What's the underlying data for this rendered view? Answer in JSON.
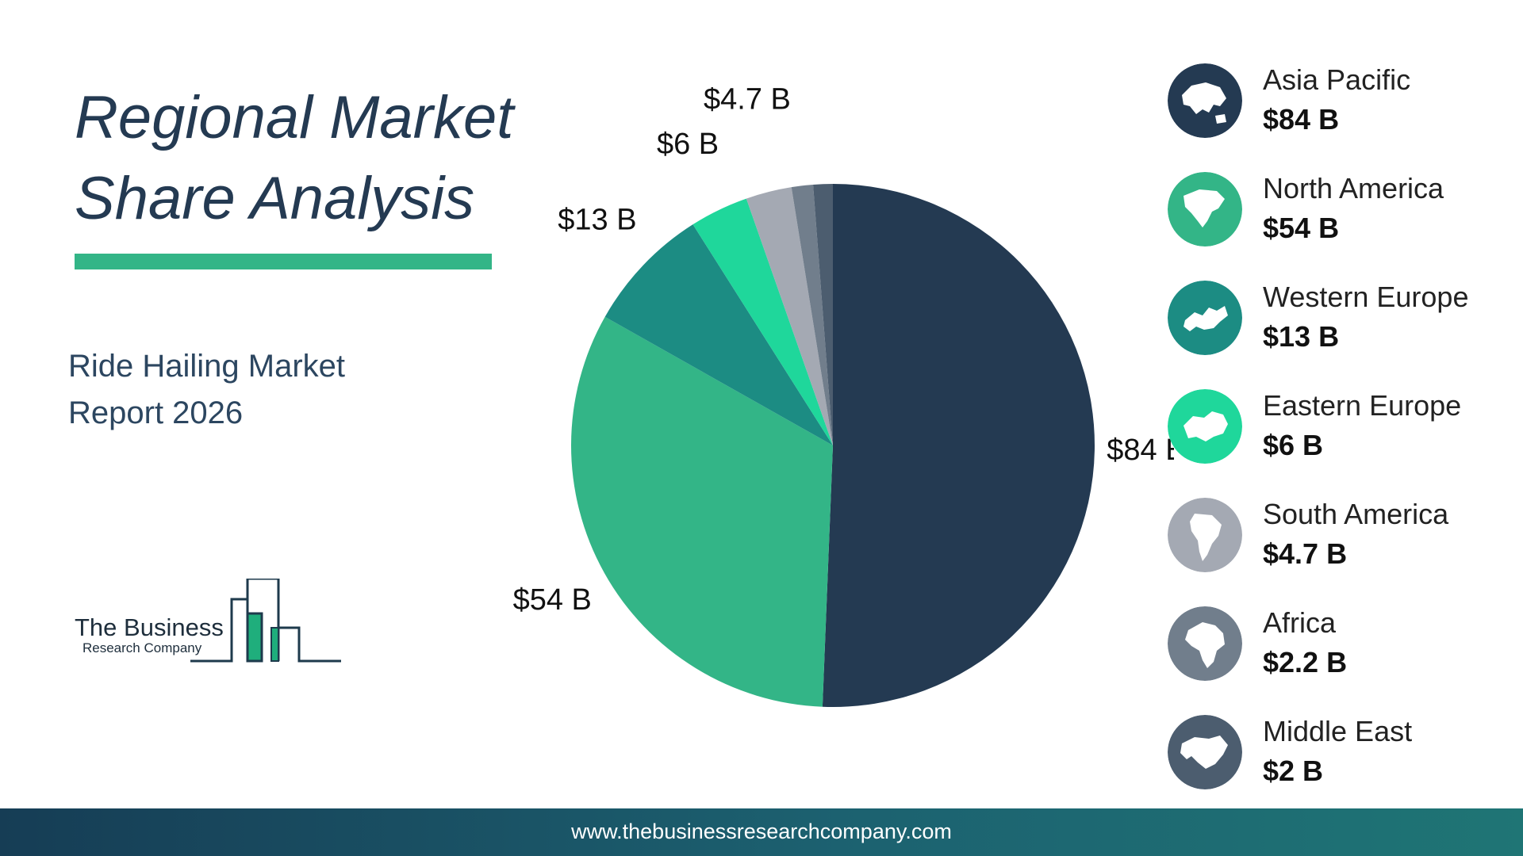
{
  "header": {
    "title_line1": "Regional Market",
    "title_line2": "Share Analysis",
    "subtitle_line1": "Ride Hailing Market",
    "subtitle_line2": "Report 2026"
  },
  "logo": {
    "name": "The Business",
    "sub": "Research Company"
  },
  "footer": {
    "url": "www.thebusinessresearchcompany.com"
  },
  "colors": {
    "title_accent": "#33b587",
    "footer_start": "#163d55",
    "footer_end": "#1f7575"
  },
  "chart_data": {
    "type": "pie",
    "start_angle_deg": 0,
    "direction": "clockwise",
    "slices": [
      {
        "label": "Asia Pacific",
        "value": 84,
        "display": "$84 B",
        "color": "#243a52",
        "icon": "asia-pacific-map-icon"
      },
      {
        "label": "North America",
        "value": 54,
        "display": "$54 B",
        "color": "#33b587",
        "icon": "north-america-map-icon"
      },
      {
        "label": "Western Europe",
        "value": 13,
        "display": "$13 B",
        "color": "#1c8c83",
        "icon": "western-europe-map-icon"
      },
      {
        "label": "Eastern Europe",
        "value": 6,
        "display": "$6 B",
        "color": "#1fd79b",
        "icon": "eastern-europe-map-icon"
      },
      {
        "label": "South America",
        "value": 4.7,
        "display": "$4.7 B",
        "color": "#a4a9b3",
        "icon": "south-america-map-icon"
      },
      {
        "label": "Africa",
        "value": 2.2,
        "display": "$2.2 B",
        "color": "#717e8c",
        "icon": "africa-map-icon"
      },
      {
        "label": "Middle East",
        "value": 2,
        "display": "$2 B",
        "color": "#4c5d6f",
        "icon": "middle-east-map-icon"
      }
    ]
  }
}
